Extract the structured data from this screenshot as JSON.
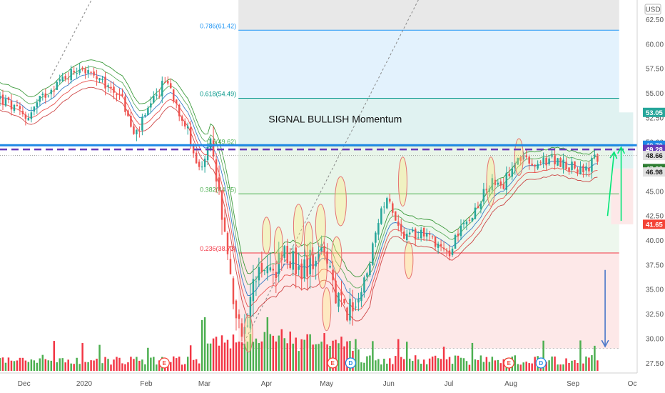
{
  "chart_data": {
    "type": "candlestick",
    "currency": "USD",
    "y_ticks": [
      27.5,
      30,
      32.5,
      35,
      37.5,
      40,
      42.5,
      45,
      47.5,
      50,
      52.5,
      55,
      57.5,
      60,
      62.5
    ],
    "ylim": [
      26.5,
      64.5
    ],
    "x_ticks": [
      {
        "label": "Dec",
        "day": 7
      },
      {
        "label": "2020",
        "day": 37
      },
      {
        "label": "Feb",
        "day": 68
      },
      {
        "label": "Mar",
        "day": 97
      },
      {
        "label": "Apr",
        "day": 128
      },
      {
        "label": "May",
        "day": 158
      },
      {
        "label": "Jun",
        "day": 189
      },
      {
        "label": "Jul",
        "day": 219
      },
      {
        "label": "Aug",
        "day": 250
      },
      {
        "label": "Sep",
        "day": 281
      },
      {
        "label": "Oct",
        "day": 311
      }
    ],
    "x_range_days": [
      -5,
      313
    ],
    "last_bar_day": 294,
    "price_path": [
      [
        -5,
        54.5
      ],
      [
        8,
        52.5
      ],
      [
        20,
        55.5
      ],
      [
        35,
        57.8
      ],
      [
        45,
        56
      ],
      [
        55,
        55
      ],
      [
        62,
        50.5
      ],
      [
        70,
        53.5
      ],
      [
        78,
        56.5
      ],
      [
        85,
        53
      ],
      [
        90,
        50.5
      ],
      [
        94,
        47
      ],
      [
        100,
        49.5
      ],
      [
        104,
        45
      ],
      [
        108,
        40
      ],
      [
        112,
        33
      ],
      [
        116,
        29.8
      ],
      [
        120,
        34
      ],
      [
        124,
        38
      ],
      [
        130,
        36
      ],
      [
        138,
        39
      ],
      [
        145,
        37
      ],
      [
        150,
        38
      ],
      [
        155,
        40
      ],
      [
        160,
        36
      ],
      [
        164,
        34
      ],
      [
        170,
        33
      ],
      [
        176,
        35
      ],
      [
        182,
        40
      ],
      [
        188,
        45
      ],
      [
        193,
        42
      ],
      [
        197,
        40
      ],
      [
        205,
        41
      ],
      [
        212,
        40
      ],
      [
        220,
        38.5
      ],
      [
        225,
        42
      ],
      [
        232,
        43
      ],
      [
        240,
        46
      ],
      [
        245,
        45
      ],
      [
        252,
        48.5
      ],
      [
        262,
        47.5
      ],
      [
        270,
        48.3
      ],
      [
        280,
        47.5
      ],
      [
        288,
        47.2
      ],
      [
        294,
        48.7
      ]
    ],
    "fib_levels": [
      {
        "label": "0.786(61.42)",
        "price": 61.42,
        "color": "#2196f3"
      },
      {
        "label": "0.618(54.49)",
        "price": 54.49,
        "color": "#009688"
      },
      {
        "label": "0.5(49.62)",
        "price": 49.62,
        "color": "#4caf50"
      },
      {
        "label": "0.382(44.75)",
        "price": 44.75,
        "color": "#4caf50"
      },
      {
        "label": "0.236(38.73)",
        "price": 38.73,
        "color": "#f23645"
      }
    ],
    "fib_zones": [
      {
        "from": 64.5,
        "to": 61.42,
        "color": "#e8e8e8"
      },
      {
        "from": 61.42,
        "to": 54.49,
        "color": "#e3f2fd"
      },
      {
        "from": 54.49,
        "to": 49.62,
        "color": "#e0f2f1"
      },
      {
        "from": 49.62,
        "to": 44.75,
        "color": "#e8f5e9"
      },
      {
        "from": 44.75,
        "to": 38.73,
        "color": "#edf7ed"
      },
      {
        "from": 38.73,
        "to": 29.0,
        "color": "#fde8e8"
      }
    ],
    "fib_start_day": 114,
    "fib_end_day": 304,
    "price_tags": [
      {
        "label": "53.05",
        "price": 53.05,
        "bg": "#26a69a",
        "fg": "#ffffff"
      },
      {
        "label": "49.70",
        "price": 49.7,
        "bg": "#1e88e5",
        "fg": "#ffffff"
      },
      {
        "label": "49.28",
        "price": 49.28,
        "bg": "#673ab7",
        "fg": "#ffffff"
      },
      {
        "label": "48.66",
        "price": 48.66,
        "bg": "#e0e0e0",
        "fg": "#222222"
      },
      {
        "label": "47.33",
        "price": 47.33,
        "bg": "#2e7d32",
        "fg": "#ffffff"
      },
      {
        "label": "46.98",
        "price": 46.98,
        "bg": "#e0e0e0",
        "fg": "#222222"
      },
      {
        "label": "41.65",
        "price": 41.65,
        "bg": "#f44336",
        "fg": "#ffffff"
      }
    ],
    "horizontal_lines": [
      {
        "price": 49.7,
        "color": "#1e88e5",
        "style": "solid"
      },
      {
        "price": 49.28,
        "color": "#673ab7",
        "style": "dashed"
      }
    ],
    "annotations": [
      {
        "text": "SIGNAL BULLISH Momentum",
        "price": 52.0,
        "day": 129
      }
    ],
    "events": [
      {
        "label": "E",
        "day": 77
      },
      {
        "label": "E",
        "day": 161
      },
      {
        "label": "D",
        "day": 170
      },
      {
        "label": "E",
        "day": 249
      },
      {
        "label": "D",
        "day": 265
      }
    ],
    "colors": {
      "up": "#26a69a",
      "down": "#ef5350",
      "vol_up": "#4caf50",
      "vol_down": "#f23645",
      "bands": [
        "#1b8a1b",
        "#43a047",
        "#1565c0",
        "#e53935",
        "#c62828"
      ]
    }
  }
}
